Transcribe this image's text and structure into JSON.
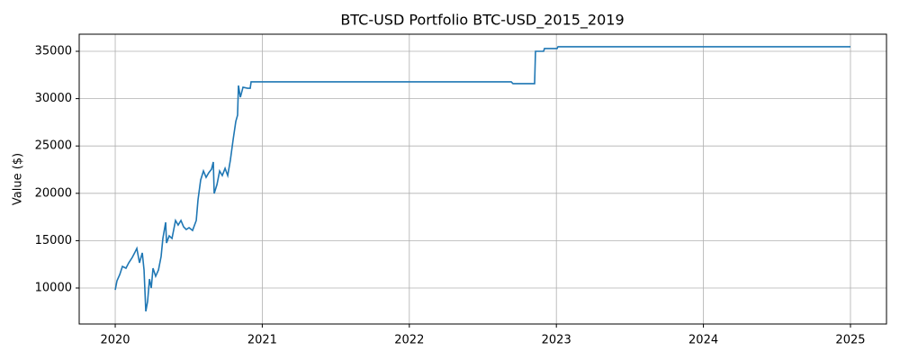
{
  "chart_data": {
    "type": "line",
    "title": "BTC-USD Portfolio BTC-USD_2015_2019",
    "y_label": "Value ($)",
    "x": [
      2020.0,
      2020.012,
      2020.031,
      2020.049,
      2020.073,
      2020.092,
      2020.116,
      2020.135,
      2020.147,
      2020.165,
      2020.184,
      2020.196,
      2020.208,
      2020.22,
      2020.233,
      2020.245,
      2020.257,
      2020.275,
      2020.294,
      2020.312,
      2020.324,
      2020.343,
      2020.349,
      2020.367,
      2020.386,
      2020.41,
      2020.428,
      2020.447,
      2020.465,
      2020.483,
      2020.502,
      2020.526,
      2020.551,
      2020.563,
      2020.581,
      2020.6,
      2020.618,
      2020.636,
      2020.655,
      2020.667,
      2020.673,
      2020.692,
      2020.71,
      2020.728,
      2020.747,
      2020.765,
      2020.783,
      2020.802,
      2020.82,
      2020.832,
      2020.838,
      2020.851,
      2020.869,
      2020.9,
      2020.918,
      2020.924,
      2022.693,
      2022.705,
      2022.852,
      2022.858,
      2022.913,
      2022.919,
      2023.005,
      2023.011,
      2025.0
    ],
    "series": [
      {
        "name": "Portfolio",
        "color": "#1f77b4",
        "values": [
          9800,
          10760,
          11430,
          12280,
          12090,
          12660,
          13230,
          13800,
          14180,
          12660,
          13710,
          11900,
          7530,
          8570,
          10950,
          10000,
          12090,
          11240,
          11900,
          13330,
          15230,
          16940,
          14750,
          15510,
          15230,
          17130,
          16650,
          17130,
          16460,
          16180,
          16370,
          16080,
          17130,
          19320,
          21410,
          22360,
          21690,
          22170,
          22550,
          23310,
          19980,
          20930,
          22360,
          21880,
          22640,
          21880,
          23500,
          25690,
          27590,
          28250,
          31390,
          30150,
          31200,
          31100,
          31100,
          31770,
          31770,
          31580,
          31580,
          35000,
          35000,
          35290,
          35290,
          35480,
          35480
        ]
      }
    ],
    "xlim": [
      2019.755,
      2025.245
    ],
    "xticks": [
      2020,
      2021,
      2022,
      2023,
      2024,
      2025
    ],
    "ylim": [
      6198,
      36806
    ],
    "yticks": [
      10000,
      15000,
      20000,
      25000,
      30000,
      35000
    ],
    "grid": true
  }
}
